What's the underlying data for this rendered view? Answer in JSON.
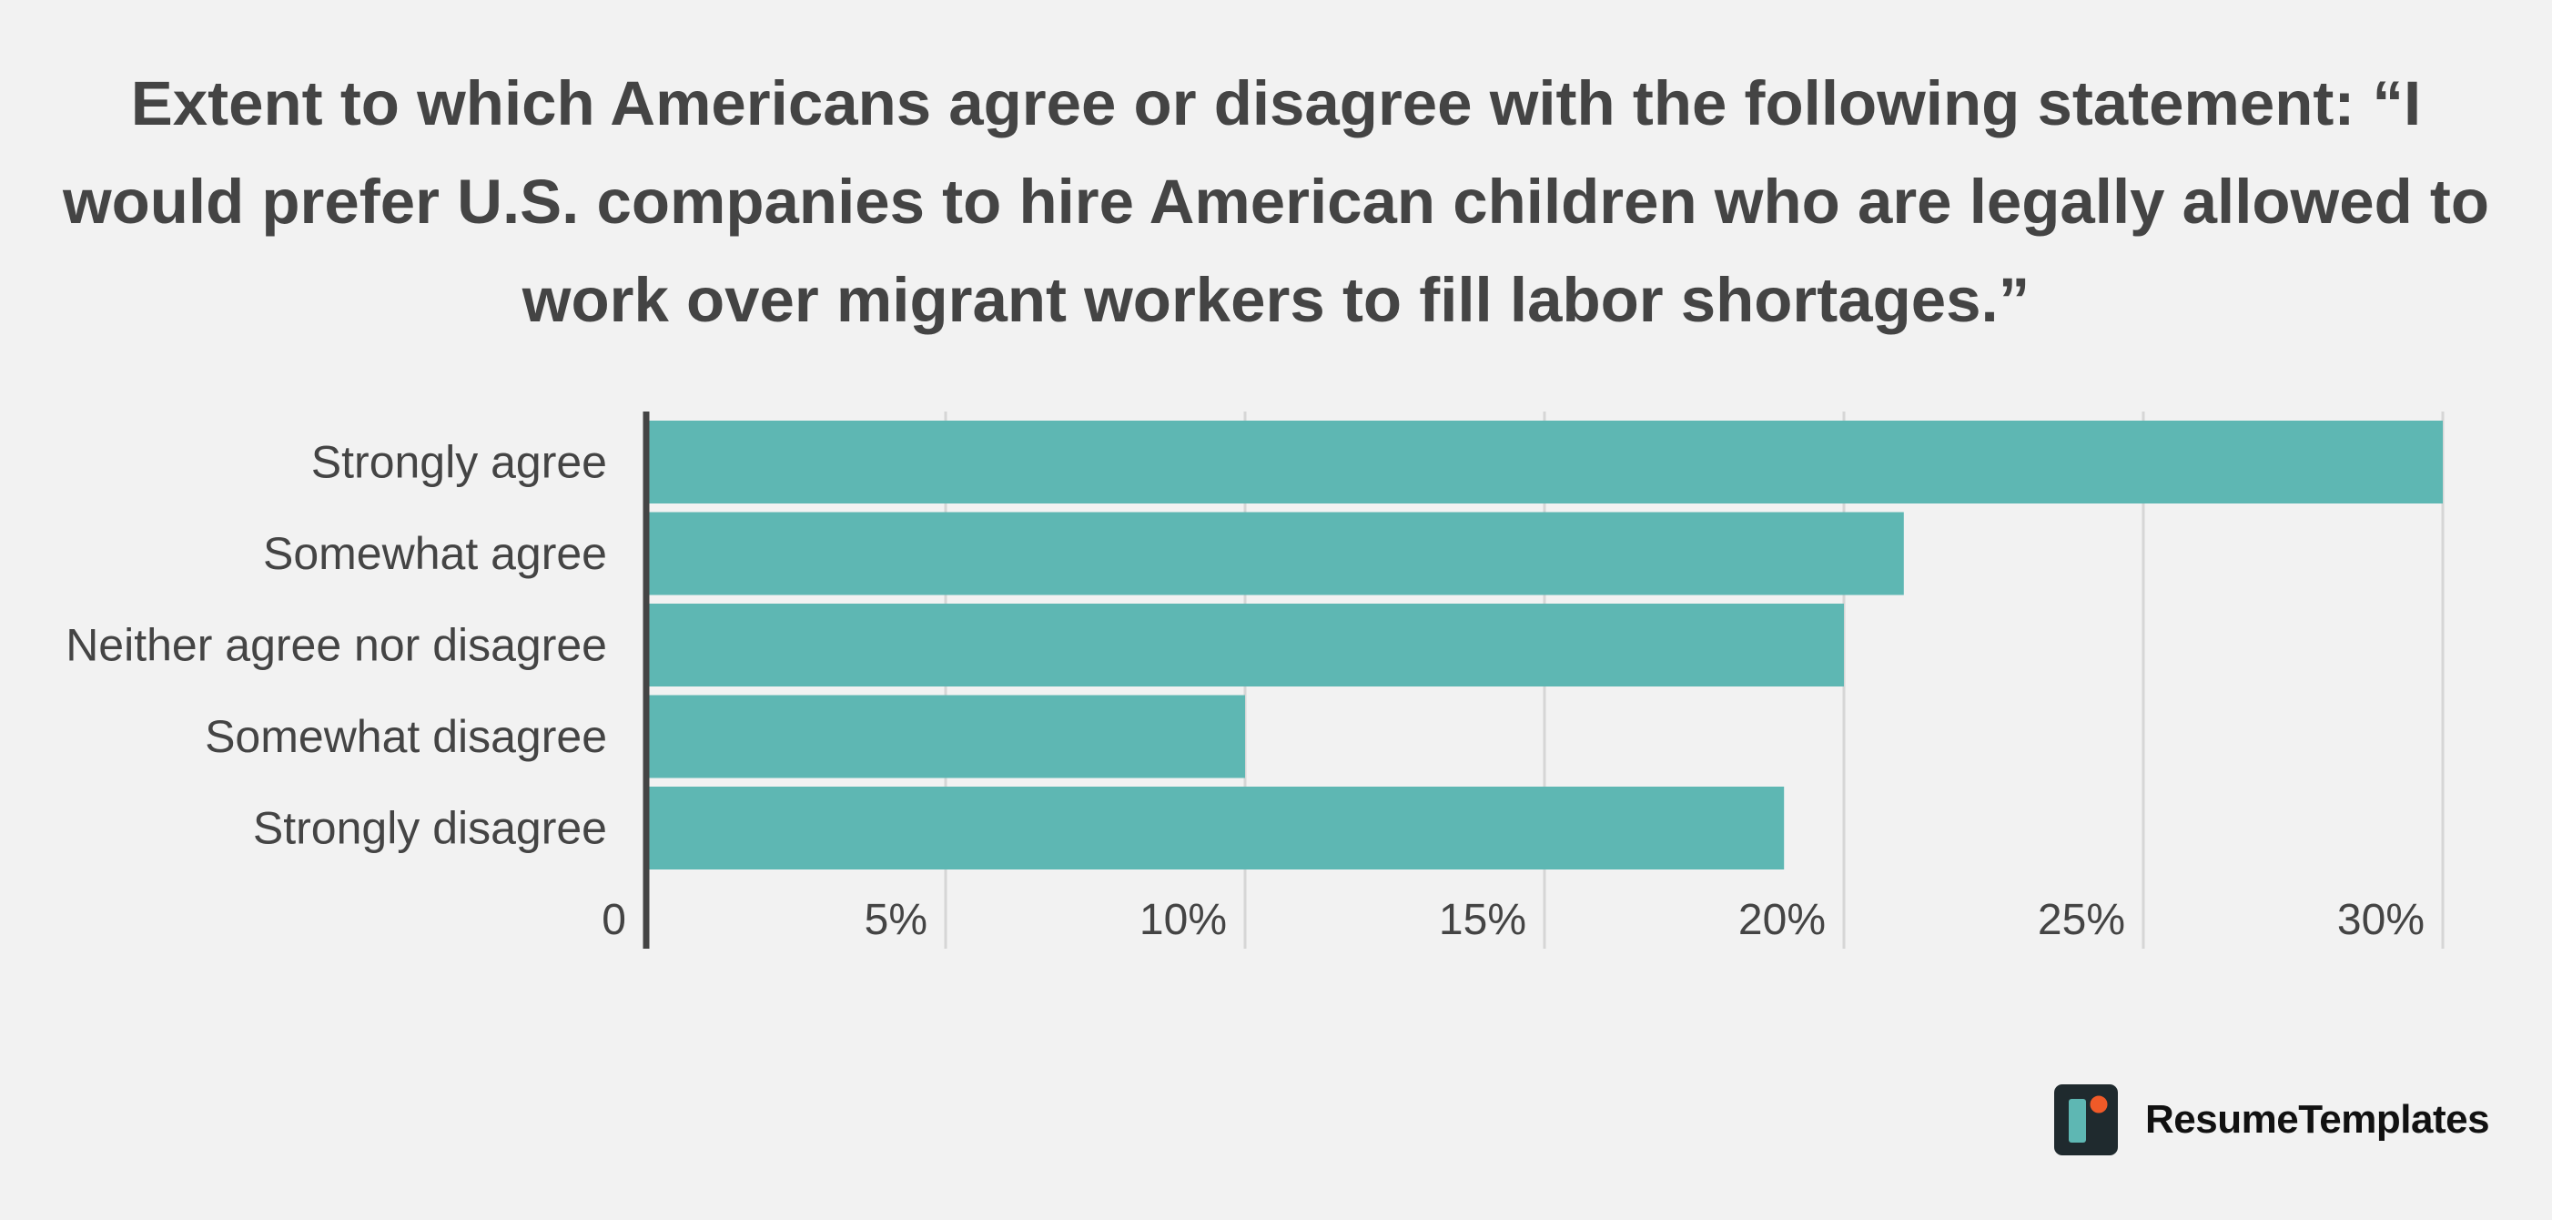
{
  "title": "Extent to which Americans agree or disagree with the following statement: “I would prefer U.S. companies to hire American children who are legally allowed to work over migrant workers to fill labor shortages.”",
  "brand": {
    "name": "ResumeTemplates",
    "logo_icon": "resumetemplates-logo-icon"
  },
  "colors": {
    "background": "#f2f2f2",
    "bar": "#5eb7b3",
    "text": "#444444",
    "grid": "#d6d6d6",
    "axis": "#444444",
    "logo_dark": "#1f2a2e",
    "logo_teal": "#5eb7b3",
    "logo_orange": "#f05a28"
  },
  "chart_data": {
    "type": "bar",
    "orientation": "horizontal",
    "categories": [
      "Strongly agree",
      "Somewhat agree",
      "Neither agree nor disagree",
      "Somewhat disagree",
      "Strongly disagree"
    ],
    "values": [
      30,
      21,
      20,
      10,
      19
    ],
    "xlim": [
      0,
      30
    ],
    "xticks": [
      0,
      5,
      10,
      15,
      20,
      25,
      30
    ],
    "xtick_labels": [
      "0",
      "5%",
      "10%",
      "15%",
      "20%",
      "25%",
      "30%"
    ],
    "xlabel": "",
    "ylabel": "",
    "grid": true,
    "legend": "none"
  }
}
